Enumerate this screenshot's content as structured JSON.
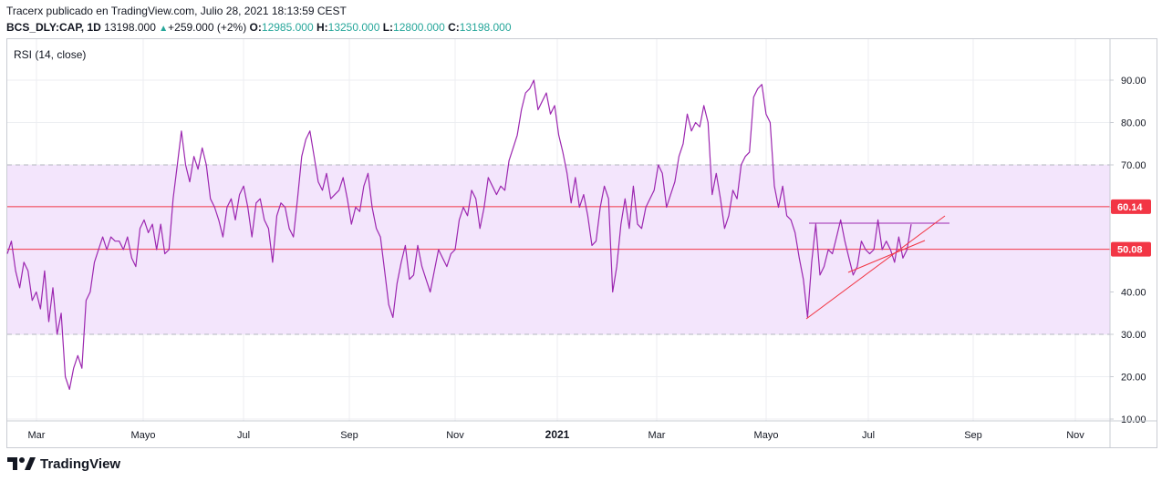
{
  "header": {
    "publisher_line": "Tracerx publicado en TradingView.com, Julio 28, 2021 18:13:59 CEST",
    "symbol": "BCS_DLY:CAP, 1D",
    "last": "13198.000",
    "change": "+259.000 (+2%)",
    "o_label": "O:",
    "o_value": "12985.000",
    "h_label": "H:",
    "h_value": "13250.000",
    "l_label": "L:",
    "l_value": "12800.000",
    "c_label": "C:",
    "c_value": "13198.000"
  },
  "branding": {
    "logo_text": "TradingView"
  },
  "colors": {
    "rsi_line": "#9c27b0",
    "band_fill": "#f3e5fc",
    "level_line": "#f23645",
    "grid": "#eceef2",
    "trend_line": "#f23645",
    "change_up": "#26a69a"
  },
  "chart_data": {
    "type": "line",
    "indicator_label": "RSI (14, close)",
    "ylim": [
      8,
      100
    ],
    "y_ticks": [
      "10.00",
      "20.00",
      "30.00",
      "40.00",
      "50.00",
      "60.00",
      "70.00",
      "80.00",
      "90.00"
    ],
    "y_tick_values": [
      10,
      20,
      30,
      40,
      50,
      60,
      70,
      80,
      90
    ],
    "x_ticks": [
      "Mar",
      "Mayo",
      "Jul",
      "Sep",
      "Nov",
      "2021",
      "Mar",
      "Mayo",
      "Jul",
      "Sep",
      "Nov"
    ],
    "band": {
      "upper": 70,
      "lower": 30
    },
    "horizontal_levels": [
      {
        "value": 60.14,
        "label": "60.14"
      },
      {
        "value": 50.08,
        "label": "50.08"
      }
    ],
    "grid": true,
    "series": [
      {
        "values": [
          49,
          52,
          45,
          41,
          47,
          45,
          38,
          40,
          36,
          45,
          33,
          41,
          30,
          35,
          20,
          17,
          22,
          25,
          22,
          38,
          40,
          47,
          50,
          53,
          50,
          53,
          52,
          52,
          50,
          53,
          48,
          46,
          55,
          57,
          54,
          56,
          50,
          56,
          49,
          50,
          62,
          70,
          78,
          70,
          66,
          72,
          69,
          74,
          70,
          62,
          60,
          57,
          53,
          60,
          62,
          57,
          63,
          65,
          60,
          53,
          61,
          62,
          57,
          55,
          47,
          58,
          61,
          60,
          55,
          53,
          62,
          72,
          76,
          78,
          72,
          66,
          64,
          68,
          62,
          63,
          64,
          67,
          62,
          56,
          60,
          59,
          65,
          68,
          60,
          55,
          53,
          45,
          37,
          34,
          42,
          47,
          51,
          43,
          44,
          51,
          46,
          43,
          40,
          45,
          50,
          48,
          46,
          49,
          50,
          57,
          60,
          58,
          64,
          62,
          55,
          60,
          67,
          65,
          63,
          65,
          64,
          71,
          74,
          77,
          83,
          87,
          88,
          90,
          83,
          85,
          87,
          82,
          84,
          77,
          73,
          68,
          61,
          67,
          60,
          63,
          58,
          51,
          52,
          60,
          65,
          62,
          40,
          46,
          56,
          62,
          55,
          65,
          56,
          55,
          60,
          62,
          64,
          70,
          68,
          60,
          63,
          66,
          72,
          75,
          82,
          78,
          80,
          79,
          84,
          80,
          63,
          68,
          62,
          55,
          58,
          64,
          62,
          70,
          72,
          73,
          86,
          88,
          89,
          82,
          80,
          65,
          60,
          65,
          58,
          57,
          54,
          48,
          43,
          34,
          47,
          56,
          44,
          46,
          50,
          49,
          53,
          57,
          52,
          48,
          44,
          46,
          52,
          50,
          49,
          50,
          57,
          50,
          52,
          50,
          47,
          53,
          48,
          50,
          56
        ]
      }
    ],
    "annotations": [
      {
        "type": "horizontal_segment",
        "value": 56
      },
      {
        "type": "trend_line"
      },
      {
        "type": "trend_line"
      }
    ]
  }
}
